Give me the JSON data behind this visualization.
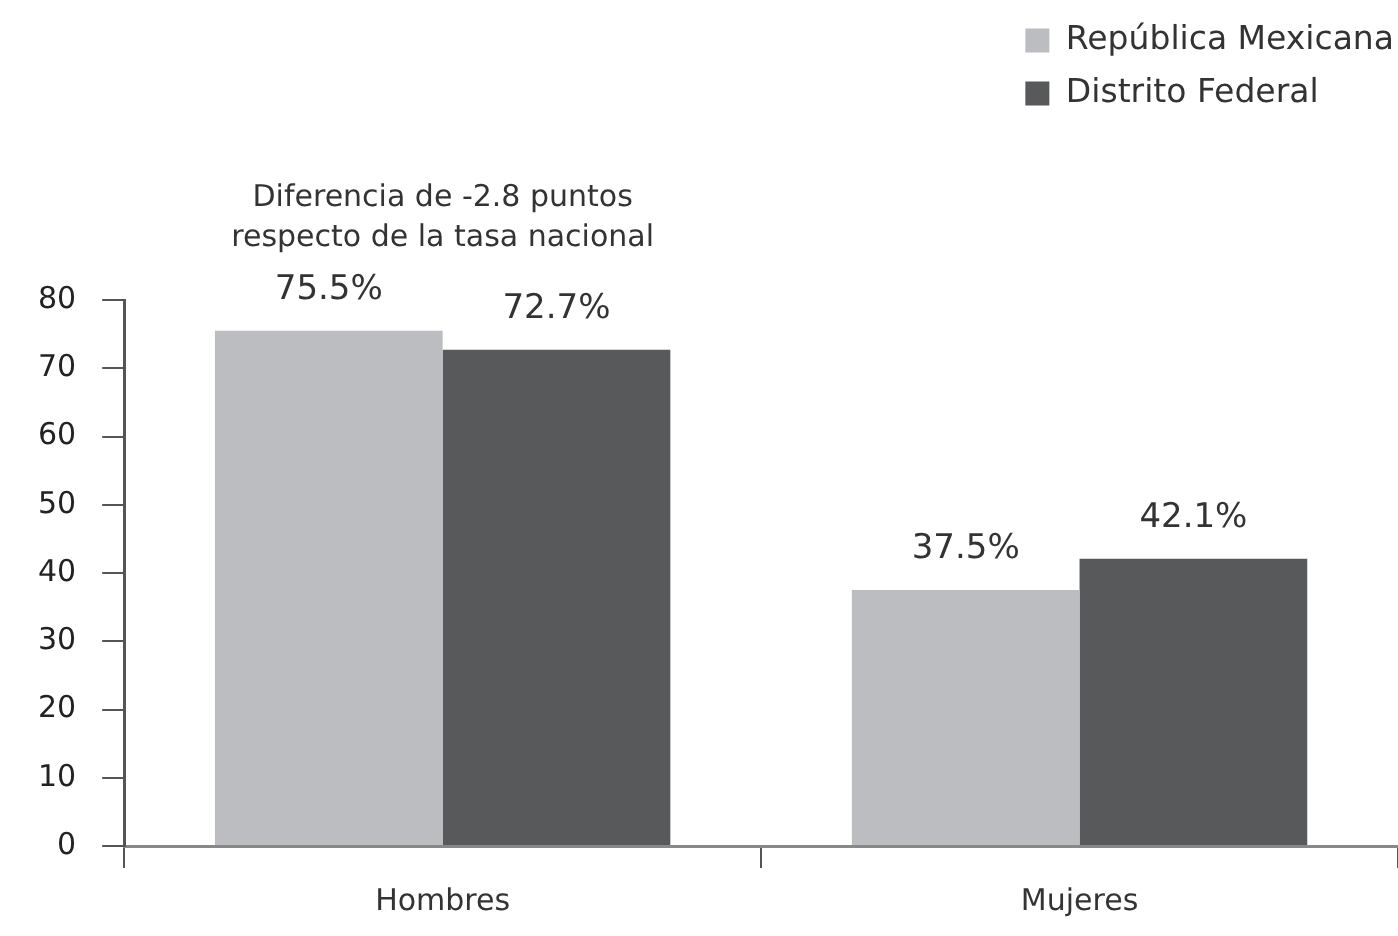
{
  "chart_data": {
    "type": "bar",
    "categories": [
      "Hombres",
      "Mujeres"
    ],
    "series": [
      {
        "name": "República Mexicana",
        "color": "#bcbdc0",
        "values": [
          75.5,
          37.5
        ],
        "value_labels": [
          "75.5%",
          "37.5%"
        ]
      },
      {
        "name": "Distrito Federal",
        "color": "#58595b",
        "values": [
          72.7,
          42.1
        ],
        "value_labels": [
          "72.7%",
          "42.1%"
        ]
      }
    ],
    "ylim": [
      0,
      80
    ],
    "yticks": [
      0,
      10,
      20,
      30,
      40,
      50,
      60,
      70,
      80
    ],
    "grid": false,
    "legend": "top right",
    "annotations": [
      "Diferencia de -2.8 puntos respecto de la tasa nacional"
    ]
  }
}
